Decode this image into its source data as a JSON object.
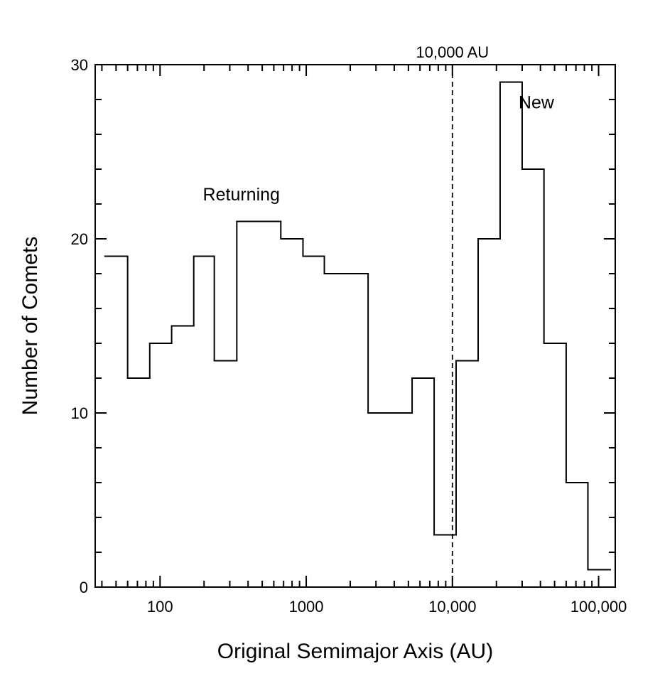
{
  "chart_data": {
    "type": "histogram",
    "title": "",
    "xlabel": "Original Semimajor Axis (AU)",
    "ylabel": "Number of Comets",
    "x_scale": "log",
    "xlim": [
      36,
      130000
    ],
    "ylim": [
      0,
      30
    ],
    "grid": false,
    "legend": "none",
    "x_ticks": [
      {
        "value": 100,
        "label": "100"
      },
      {
        "value": 1000,
        "label": "1000"
      },
      {
        "value": 10000,
        "label": "10,000"
      },
      {
        "value": 100000,
        "label": "100,000"
      }
    ],
    "y_ticks": [
      {
        "value": 0,
        "label": "0"
      },
      {
        "value": 10,
        "label": "10"
      },
      {
        "value": 20,
        "label": "20"
      },
      {
        "value": 30,
        "label": "30"
      }
    ],
    "y_minor_step": 2,
    "bins": [
      {
        "x0": 42,
        "x1": 60,
        "count": 19
      },
      {
        "x0": 60,
        "x1": 85,
        "count": 12
      },
      {
        "x0": 85,
        "x1": 120,
        "count": 14
      },
      {
        "x0": 120,
        "x1": 170,
        "count": 15
      },
      {
        "x0": 170,
        "x1": 235,
        "count": 19
      },
      {
        "x0": 235,
        "x1": 335,
        "count": 13
      },
      {
        "x0": 335,
        "x1": 670,
        "count": 21
      },
      {
        "x0": 670,
        "x1": 950,
        "count": 20
      },
      {
        "x0": 950,
        "x1": 1330,
        "count": 19
      },
      {
        "x0": 1330,
        "x1": 2650,
        "count": 18
      },
      {
        "x0": 2650,
        "x1": 5300,
        "count": 10
      },
      {
        "x0": 5300,
        "x1": 7500,
        "count": 12
      },
      {
        "x0": 7500,
        "x1": 10600,
        "count": 3
      },
      {
        "x0": 10600,
        "x1": 15000,
        "count": 13
      },
      {
        "x0": 15000,
        "x1": 21200,
        "count": 20
      },
      {
        "x0": 21200,
        "x1": 30000,
        "count": 29
      },
      {
        "x0": 30000,
        "x1": 42300,
        "count": 24
      },
      {
        "x0": 42300,
        "x1": 60000,
        "count": 14
      },
      {
        "x0": 60000,
        "x1": 84500,
        "count": 6
      },
      {
        "x0": 84500,
        "x1": 120000,
        "count": 1
      }
    ],
    "reference_line": {
      "x": 10000,
      "label": "10,000 AU",
      "style": "dashed"
    },
    "annotations": [
      {
        "text": "Returning",
        "x": 360,
        "y": 22.2
      },
      {
        "text": "New",
        "x": 37500,
        "y": 27.5
      }
    ]
  }
}
